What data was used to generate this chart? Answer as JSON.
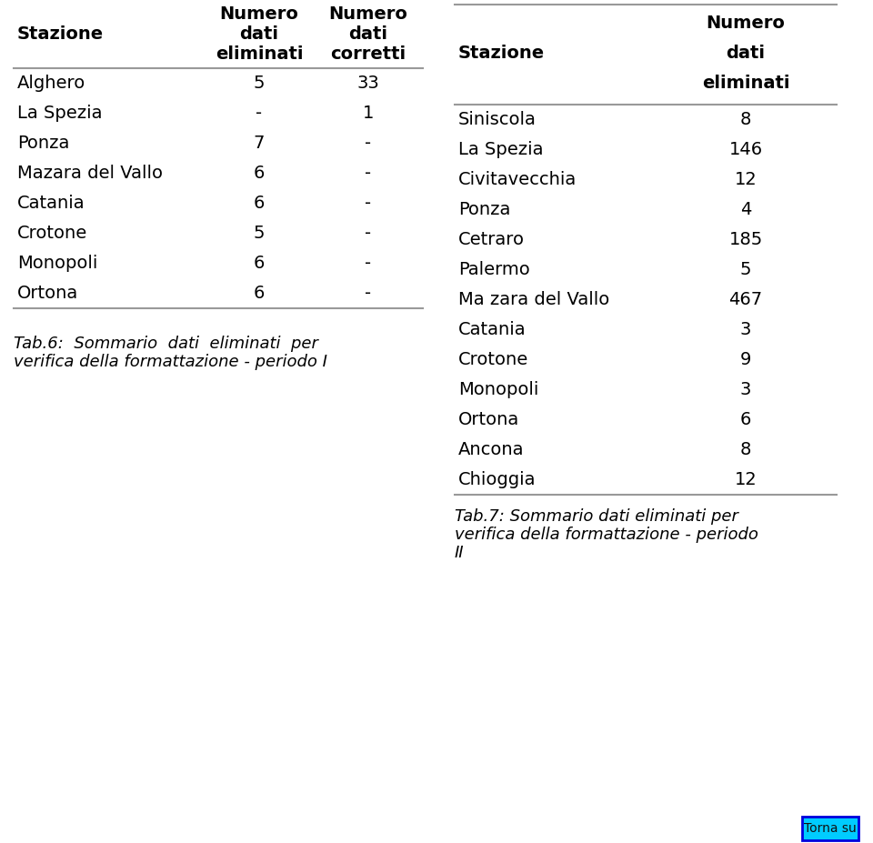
{
  "table1": {
    "rows": [
      [
        "Alghero",
        "5",
        "33"
      ],
      [
        "La Spezia",
        "-",
        "1"
      ],
      [
        "Ponza",
        "7",
        "-"
      ],
      [
        "Mazara del Vallo",
        "6",
        "-"
      ],
      [
        "Catania",
        "6",
        "-"
      ],
      [
        "Crotone",
        "5",
        "-"
      ],
      [
        "Monopoli",
        "6",
        "-"
      ],
      [
        "Ortona",
        "6",
        "-"
      ]
    ],
    "caption_line1": "Tab.6:  Sommario  dati  eliminati  per",
    "caption_line2": "verifica della formattazione - periodo I"
  },
  "table2": {
    "rows": [
      [
        "Siniscola",
        "8"
      ],
      [
        "La Spezia",
        "146"
      ],
      [
        "Civitavecchia",
        "12"
      ],
      [
        "Ponza",
        "4"
      ],
      [
        "Cetraro",
        "185"
      ],
      [
        "Palermo",
        "5"
      ],
      [
        "Ma zara del Vallo",
        "467"
      ],
      [
        "Catania",
        "3"
      ],
      [
        "Crotone",
        "9"
      ],
      [
        "Monopoli",
        "3"
      ],
      [
        "Ortona",
        "6"
      ],
      [
        "Ancona",
        "8"
      ],
      [
        "Chioggia",
        "12"
      ]
    ],
    "caption_line1": "Tab.7: Sommario dati eliminati per",
    "caption_line2": "verifica della formattazione - periodo",
    "caption_line3": "II"
  },
  "bg_color": "#ffffff",
  "line_color": "#999999",
  "text_color": "#000000",
  "torna_su_bg": "#00ccff",
  "torna_su_border": "#0000dd",
  "torna_su_text": "Torna su",
  "font_size": 14,
  "caption_font_size": 13
}
